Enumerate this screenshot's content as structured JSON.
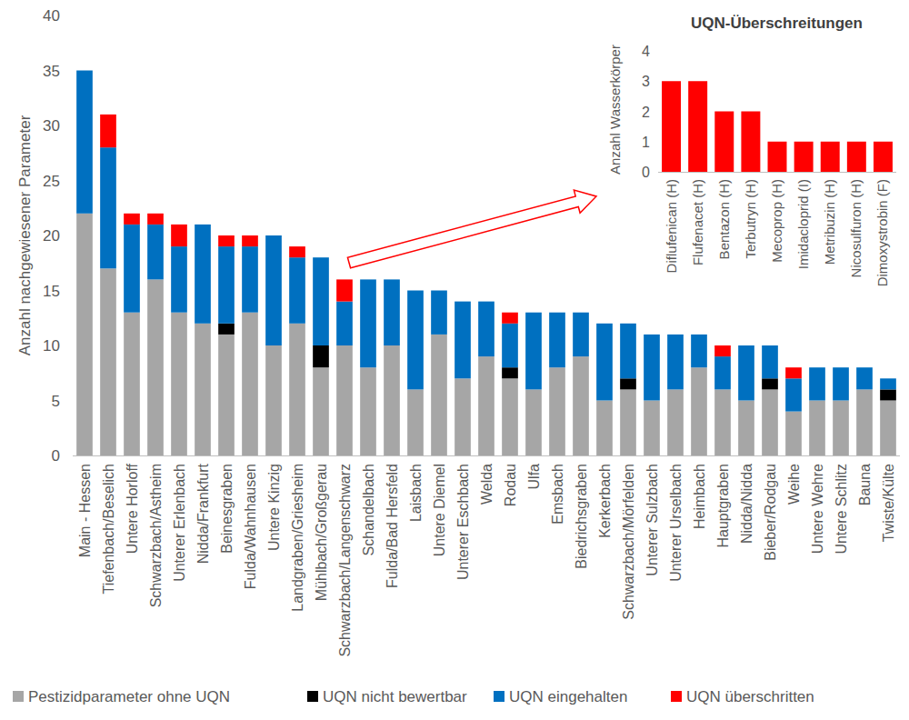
{
  "chart_data": [
    {
      "type": "bar",
      "stacked": true,
      "legend": "bottom",
      "grid": false,
      "y_label": "Anzahl nachgewiesener Parameter",
      "categories": [
        "Main - Hessen",
        "Tiefenbach/Beselich",
        "Untere Horloff",
        "Schwarzbach/Astheim",
        "Unterer Erlenbach",
        "Nidda/Frankfurt",
        "Beinesgraben",
        "Fulda/Wahnhausen",
        "Untere Kinzig",
        "Landgraben/Griesheim",
        "Mühlbach/Großgerau",
        "Schwarzbach/Langenschwarz",
        "Schandelbach",
        "Fulda/Bad Hersfeld",
        "Laisbach",
        "Untere Diemel",
        "Unterer Eschbach",
        "Welda",
        "Rodau",
        "Ulfa",
        "Emsbach",
        "Biedrichsgraben",
        "Kerkerbach",
        "Schwarzbach/Mörfelden",
        "Unterer Sulzbach",
        "Unterer Urselbach",
        "Heimbach",
        "Hauptgraben",
        "Nidda/Nidda",
        "Bieber/Rodgau",
        "Weihe",
        "Untere Wehre",
        "Untere Schlitz",
        "Bauna",
        "Twiste/Külte"
      ],
      "series": [
        {
          "name": "Pestizidparameter ohne UQN",
          "color": "#a6a6a6",
          "values": [
            22,
            17,
            13,
            16,
            13,
            12,
            11,
            13,
            10,
            12,
            8,
            10,
            8,
            10,
            6,
            11,
            7,
            9,
            7,
            6,
            8,
            9,
            5,
            6,
            5,
            6,
            8,
            6,
            5,
            6,
            4,
            5,
            5,
            6,
            5
          ]
        },
        {
          "name": "UQN nicht bewertbar",
          "color": "#000000",
          "values": [
            0,
            0,
            0,
            0,
            0,
            0,
            1,
            0,
            0,
            0,
            2,
            0,
            0,
            0,
            0,
            0,
            0,
            0,
            1,
            0,
            0,
            0,
            0,
            1,
            0,
            0,
            0,
            0,
            0,
            1,
            0,
            0,
            0,
            0,
            1
          ]
        },
        {
          "name": "UQN eingehalten",
          "color": "#0070c0",
          "values": [
            13,
            11,
            8,
            5,
            6,
            9,
            7,
            6,
            10,
            6,
            8,
            4,
            8,
            6,
            9,
            4,
            7,
            5,
            4,
            7,
            5,
            4,
            7,
            5,
            6,
            5,
            3,
            3,
            5,
            3,
            3,
            3,
            3,
            2,
            1
          ]
        },
        {
          "name": "UQN überschritten",
          "color": "#ff0000",
          "values": [
            0,
            3,
            1,
            1,
            2,
            0,
            1,
            1,
            0,
            1,
            0,
            2,
            0,
            0,
            0,
            0,
            0,
            0,
            1,
            0,
            0,
            0,
            0,
            0,
            0,
            0,
            0,
            1,
            0,
            0,
            1,
            0,
            0,
            0,
            0
          ]
        }
      ],
      "ylim": [
        0,
        40
      ],
      "yticks": [
        0,
        5,
        10,
        15,
        20,
        25,
        30,
        35,
        40
      ]
    },
    {
      "type": "bar",
      "title": "UQN-Überschreitungen",
      "y_label": "Anzahl Wasserkörper",
      "grid": false,
      "categories": [
        "Diflufenican (H)",
        "Flufenacet (H)",
        "Bentazon (H)",
        "Terbutryn (H)",
        "Mecoprop (H)",
        "Imidacloprid (I)",
        "Metribuzin (H)",
        "Nicosulfuron (H)",
        "Dimoxystrobin (F)"
      ],
      "values": [
        3,
        3,
        2,
        2,
        1,
        1,
        1,
        1,
        1
      ],
      "color": "#ff0000",
      "ylim": [
        0,
        4
      ],
      "yticks": [
        0,
        1,
        2,
        3,
        4
      ]
    }
  ]
}
